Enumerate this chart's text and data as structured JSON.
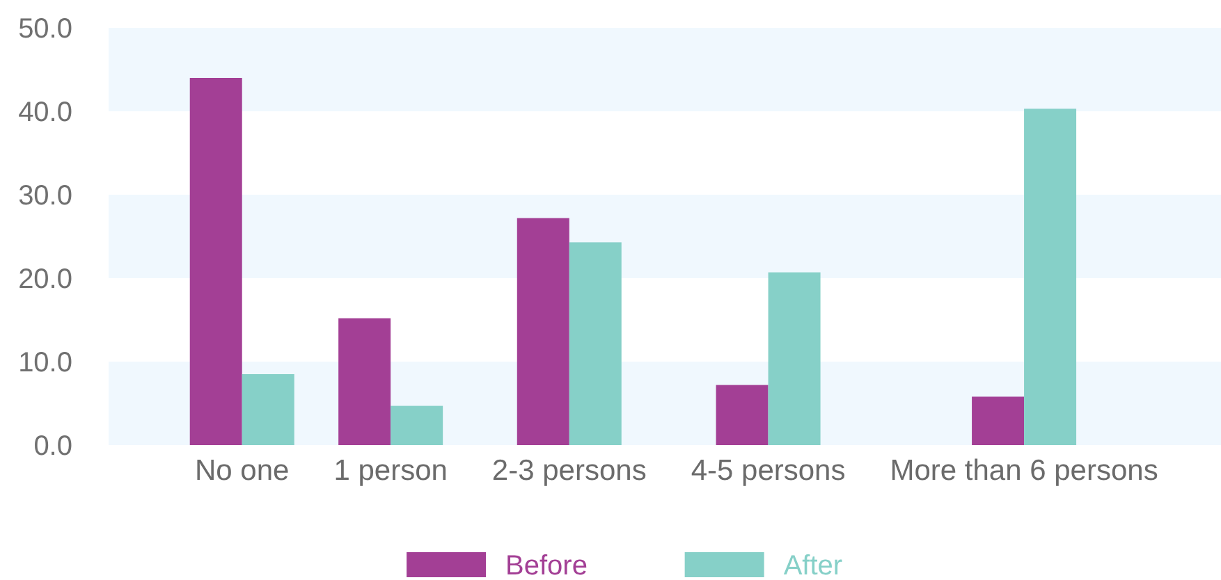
{
  "chart_data": {
    "type": "bar",
    "categories": [
      "No one",
      "1 person",
      "2-3 persons",
      "4-5 persons",
      "More than 6 persons"
    ],
    "series": [
      {
        "name": "Before",
        "color": "#a33f95",
        "values": [
          44.0,
          15.2,
          27.2,
          7.2,
          5.8
        ]
      },
      {
        "name": "After",
        "color": "#86d0c8",
        "values": [
          8.5,
          4.7,
          24.3,
          20.7,
          40.3
        ]
      }
    ],
    "ylim": [
      0,
      50
    ],
    "yticks": [
      {
        "value": 0,
        "label": "0.0"
      },
      {
        "value": 10,
        "label": "10.0"
      },
      {
        "value": 20,
        "label": "20.0"
      },
      {
        "value": 30,
        "label": "30.0"
      },
      {
        "value": 40,
        "label": "40.0"
      },
      {
        "value": 50,
        "label": "50.0"
      }
    ],
    "bands": [
      {
        "axis": "y",
        "from": 0,
        "to": 10,
        "color": "#f0f8fe"
      },
      {
        "axis": "y",
        "from": 20,
        "to": 30,
        "color": "#f0f8fe"
      },
      {
        "axis": "y",
        "from": 40,
        "to": 50,
        "color": "#f0f8fe"
      }
    ],
    "legend": "bottom"
  }
}
